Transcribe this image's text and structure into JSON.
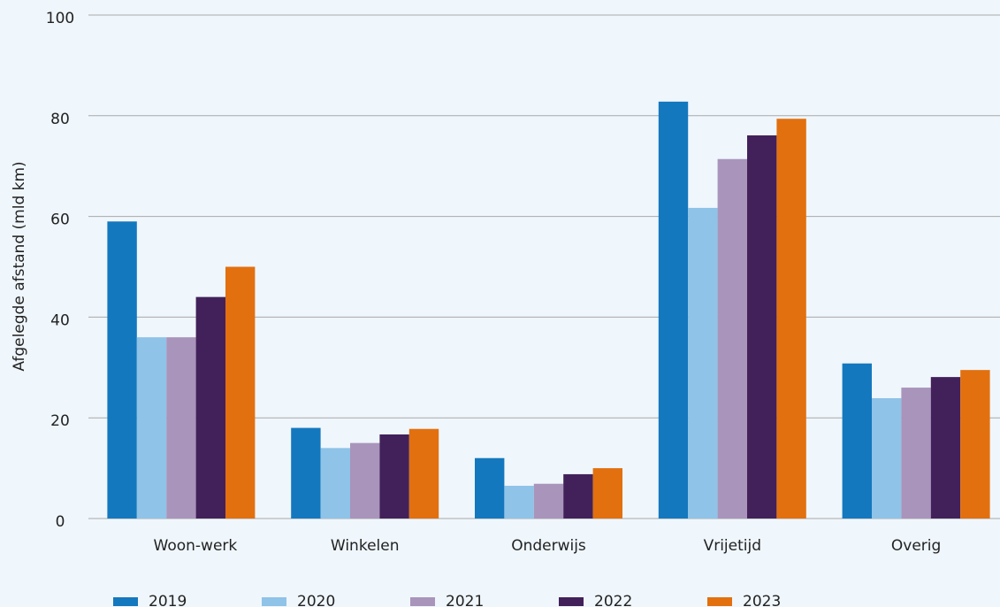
{
  "chart_data": {
    "type": "bar",
    "y_label": "Afgelegde afstand (mld km)",
    "categories": [
      "Woon-werk",
      "Winkelen",
      "Onderwijs",
      "Vrijetijd",
      "Overig"
    ],
    "series": [
      {
        "name": "2019",
        "color": "#1478be",
        "values": [
          59,
          18,
          12,
          82.8,
          30.8
        ]
      },
      {
        "name": "2020",
        "color": "#8fc3e8",
        "values": [
          36,
          14,
          6.5,
          61.7,
          23.9
        ]
      },
      {
        "name": "2021",
        "color": "#a994bb",
        "values": [
          36,
          15,
          6.9,
          71.4,
          26
        ]
      },
      {
        "name": "2022",
        "color": "#42215a",
        "values": [
          44,
          16.7,
          8.8,
          76.1,
          28.1
        ]
      },
      {
        "name": "2023",
        "color": "#e2700f",
        "values": [
          50,
          17.8,
          10,
          79.4,
          29.5
        ]
      }
    ],
    "ylim": [
      0,
      100
    ],
    "yticks": [
      0,
      20,
      40,
      60,
      80,
      100
    ],
    "grid": true,
    "legend": "bottom"
  }
}
